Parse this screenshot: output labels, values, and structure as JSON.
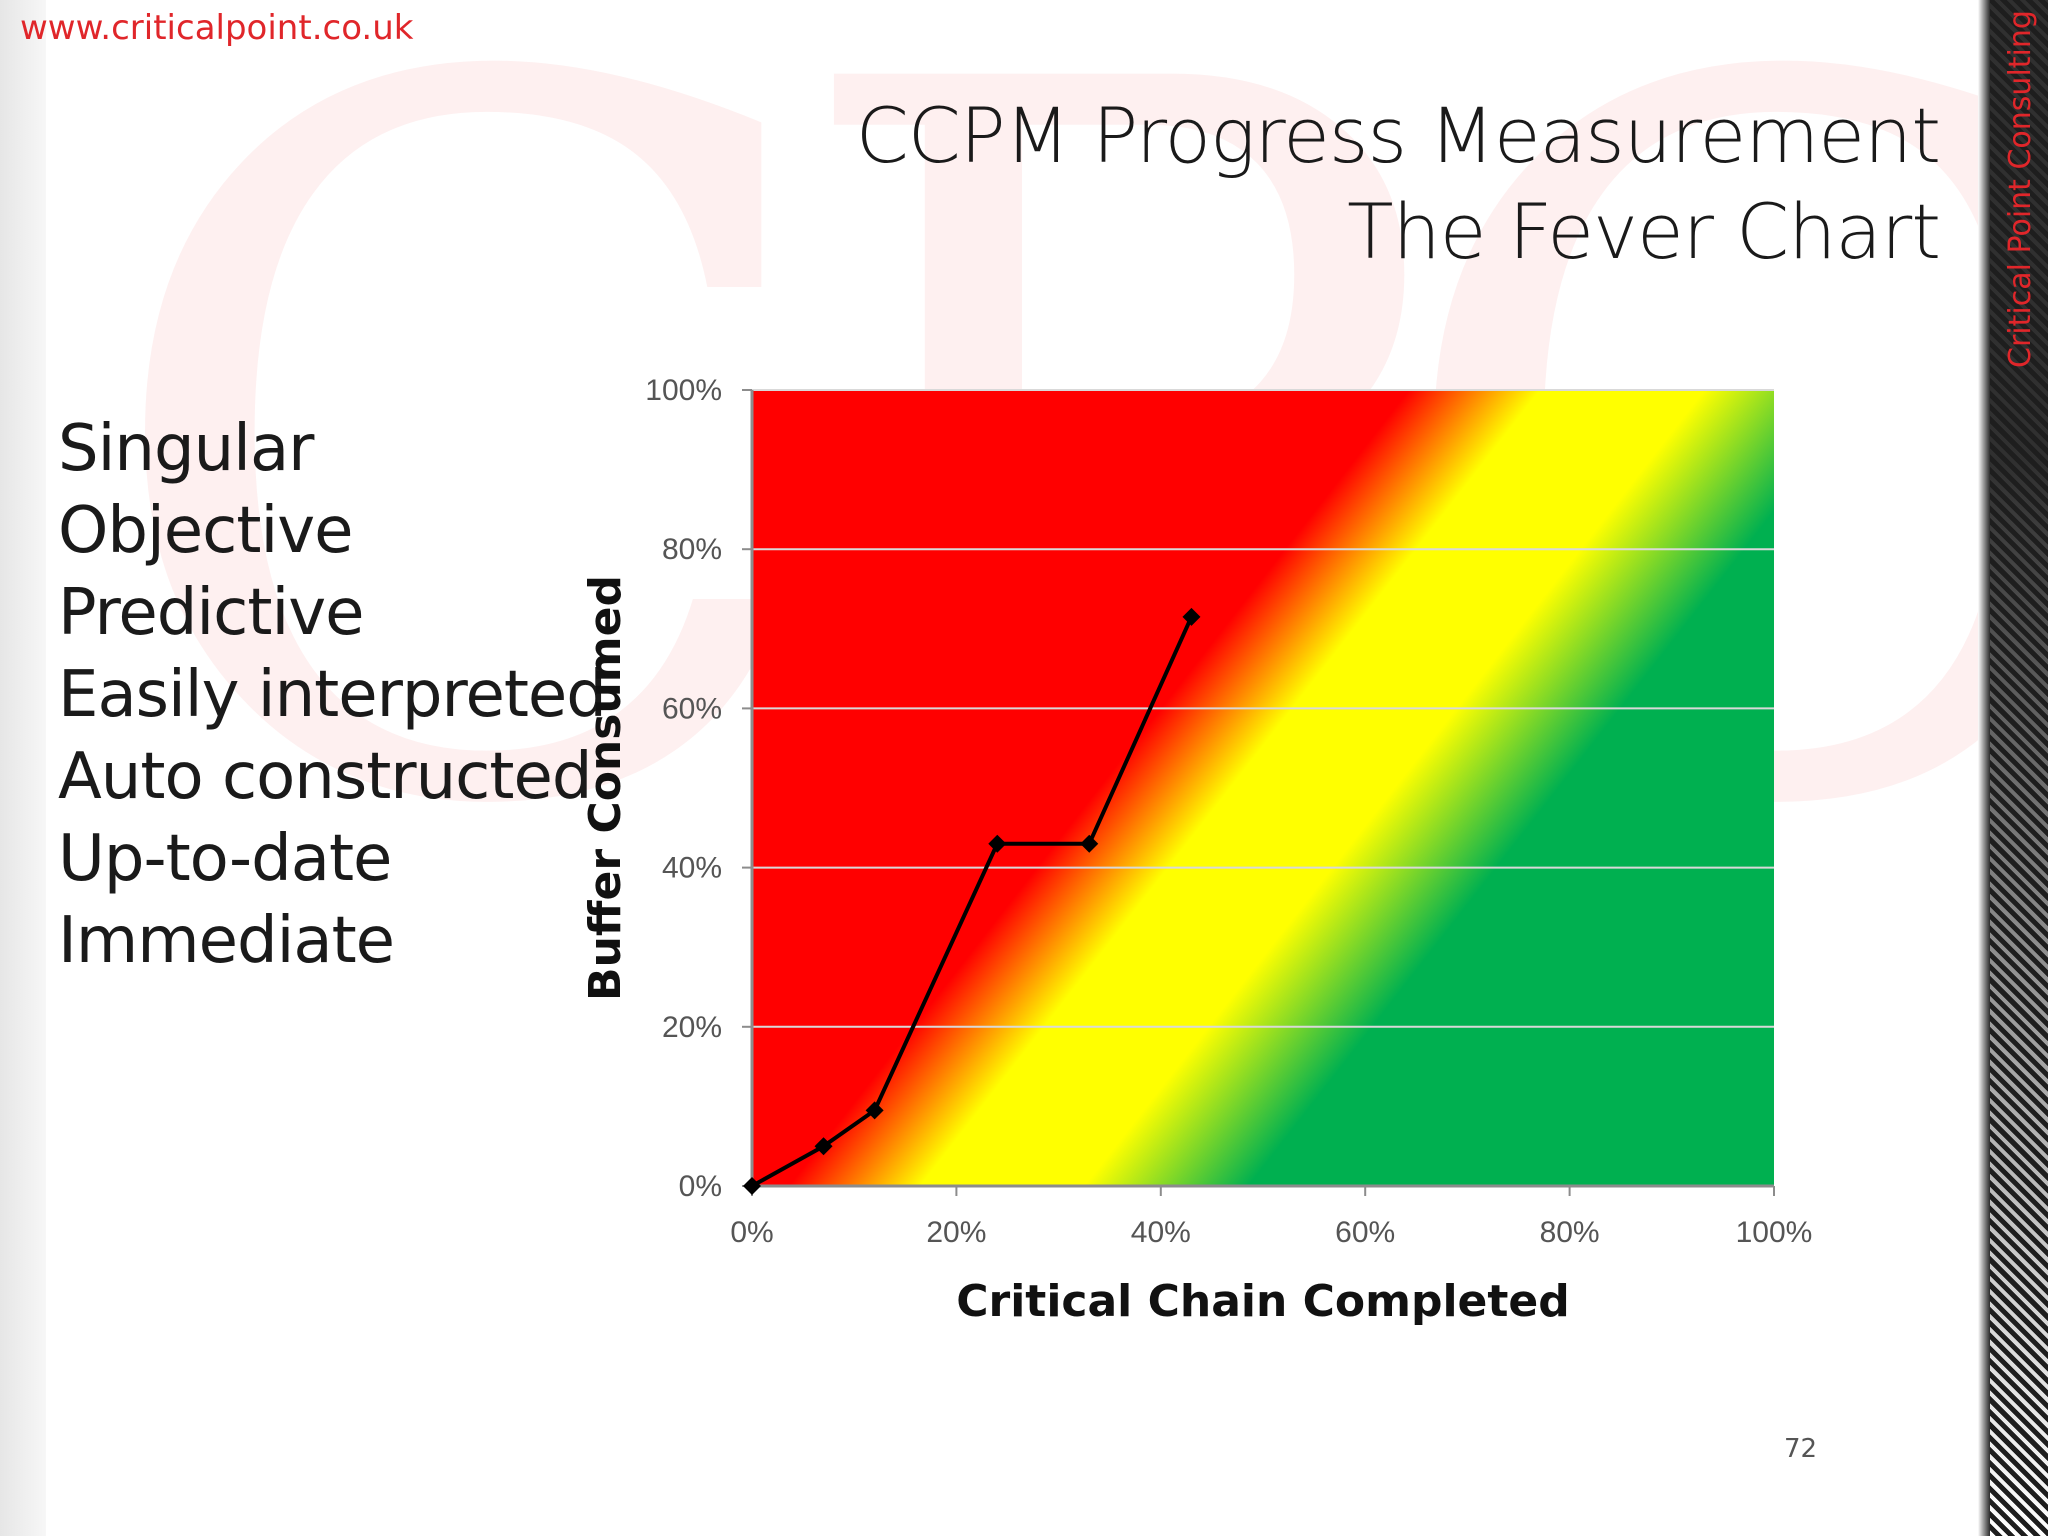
{
  "header": {
    "url": "www.criticalpoint.co.uk",
    "side_label": "Critical Point Consulting",
    "page_number": "72"
  },
  "title": {
    "line1": "CCPM Progress Measurement",
    "line2": "The Fever Chart"
  },
  "bullets": [
    "Singular",
    "Objective",
    "Predictive",
    "Easily interpreted",
    "Auto constructed",
    "Up-to-date",
    "Immediate"
  ],
  "colors": {
    "red": "#ff0000",
    "yellow": "#ffff00",
    "green": "#00b050",
    "accent": "#e0262a",
    "line": "#000000"
  },
  "chart_data": {
    "type": "line",
    "xlabel": "Critical Chain Completed",
    "ylabel": "Buffer Consumed",
    "xlim": [
      0,
      100
    ],
    "ylim": [
      0,
      100
    ],
    "x_ticks": [
      "0%",
      "20%",
      "40%",
      "60%",
      "80%",
      "100%"
    ],
    "y_ticks": [
      "0%",
      "20%",
      "40%",
      "60%",
      "80%",
      "100%"
    ],
    "grid": "horizontal",
    "background": "red-yellow-green diagonal zones",
    "series": [
      {
        "x": [
          0,
          7,
          12,
          24,
          33,
          43
        ],
        "y": [
          0,
          5,
          9.5,
          43,
          43,
          71.5
        ]
      }
    ]
  }
}
